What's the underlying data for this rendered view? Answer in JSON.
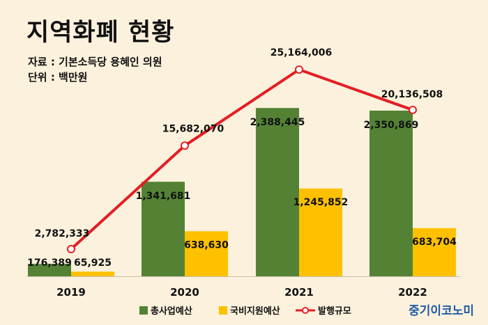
{
  "title": "지역화폐 현황",
  "source": "자료 : 기본소득당 용혜인 의원",
  "unit": "단위 : 백만원",
  "logo_text": "중기이코노미",
  "chart_data": {
    "type": "bar",
    "categories": [
      "2019",
      "2020",
      "2021",
      "2022"
    ],
    "series": [
      {
        "name": "총사업예산",
        "type": "bar",
        "color": "#548235",
        "values": [
          176389,
          1341681,
          2388445,
          2350869
        ],
        "labels": [
          "176,389",
          "1,341,681",
          "2,388,445",
          "2,350,869"
        ]
      },
      {
        "name": "국비지원예산",
        "type": "bar",
        "color": "#ffc000",
        "values": [
          65925,
          638630,
          1245852,
          683704
        ],
        "labels": [
          "65,925",
          "638,630",
          "1,245,852",
          "683,704"
        ]
      },
      {
        "name": "발행규모",
        "type": "line",
        "color": "#e31e24",
        "values": [
          2782333,
          15682070,
          25164006,
          20136508
        ],
        "labels": [
          "2,782,333",
          "15,682,070",
          "25,164,006",
          "20,136,508"
        ]
      }
    ],
    "legend_position": "bottom-center",
    "grid": false
  }
}
